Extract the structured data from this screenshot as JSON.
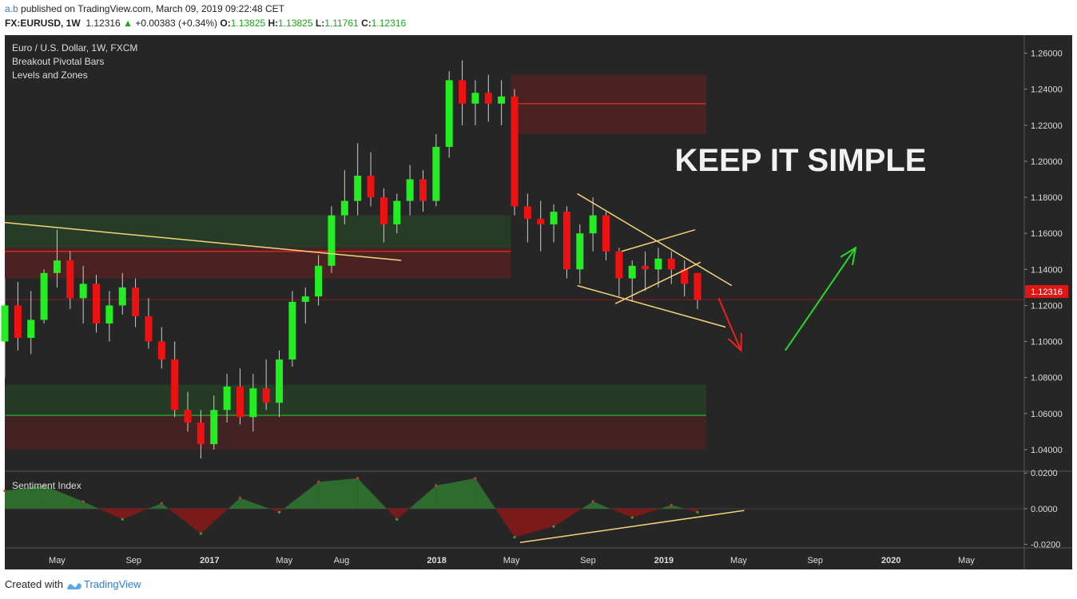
{
  "header": {
    "user": "a.b",
    "published": "published on TradingView.com, March 09, 2019 09:22:48 CET",
    "symbol_line": "FX:EURUSD, 1W",
    "last": "1.12316",
    "change_arrow": "▲",
    "change": "+0.00383 (+0.34%)",
    "o_label": "O:",
    "o": "1.13825",
    "h_label": "H:",
    "h": "1.13825",
    "l_label": "L:",
    "l": "1.11761",
    "c_label": "C:",
    "c": "1.12316"
  },
  "legend": {
    "line1": "Euro / U.S. Dollar, 1W, FXCM",
    "line2": "Breakout Pivotal Bars",
    "line3": "Levels and Zones"
  },
  "annotation": "KEEP IT SIMPLE",
  "indicator_label": "Sentiment Index",
  "price_tag": "1.12316",
  "footer": {
    "created": "Created with",
    "brand": "TradingView"
  },
  "colors": {
    "background": "#262626",
    "bull": "#22ee22",
    "bear": "#ee1111",
    "trendline": "#f4d47a",
    "arrow_up": "#22dd22",
    "arrow_down": "#ee2020",
    "sentiment_pos": "#2e6b2e",
    "sentiment_neg": "#7a1a1a"
  },
  "chart_data": {
    "type": "candlestick",
    "title": "Euro / U.S. Dollar, 1W, FXCM",
    "symbol": "FX:EURUSD",
    "timeframe": "1W",
    "y_axis": {
      "ticks": [
        "1.26000",
        "1.24000",
        "1.22000",
        "1.20000",
        "1.18000",
        "1.16000",
        "1.14000",
        "1.12000",
        "1.10000",
        "1.08000",
        "1.06000",
        "1.04000"
      ],
      "range": [
        1.028,
        1.27
      ]
    },
    "x_axis": {
      "ticks": [
        "May",
        "Sep",
        "2017",
        "May",
        "Aug",
        "2018",
        "May",
        "Sep",
        "2019",
        "May",
        "Sep",
        "2020",
        "May"
      ],
      "range": [
        "2016-02-07",
        "2020-08-02"
      ]
    },
    "last_price": 1.12316,
    "candles": [
      [
        "2016-02-07",
        1.1,
        1.135,
        1.08,
        1.12
      ],
      [
        "2016-02-28",
        1.12,
        1.133,
        1.095,
        1.102
      ],
      [
        "2016-03-20",
        1.102,
        1.128,
        1.093,
        1.112
      ],
      [
        "2016-04-10",
        1.112,
        1.14,
        1.11,
        1.138
      ],
      [
        "2016-05-01",
        1.138,
        1.162,
        1.13,
        1.145
      ],
      [
        "2016-05-22",
        1.145,
        1.15,
        1.118,
        1.124
      ],
      [
        "2016-06-12",
        1.124,
        1.142,
        1.11,
        1.132
      ],
      [
        "2016-07-03",
        1.132,
        1.137,
        1.105,
        1.11
      ],
      [
        "2016-07-24",
        1.11,
        1.128,
        1.1,
        1.12
      ],
      [
        "2016-08-14",
        1.12,
        1.138,
        1.115,
        1.13
      ],
      [
        "2016-09-04",
        1.13,
        1.135,
        1.108,
        1.114
      ],
      [
        "2016-09-25",
        1.114,
        1.124,
        1.096,
        1.1
      ],
      [
        "2016-10-16",
        1.1,
        1.108,
        1.085,
        1.09
      ],
      [
        "2016-11-06",
        1.09,
        1.1,
        1.058,
        1.062
      ],
      [
        "2016-11-27",
        1.062,
        1.072,
        1.05,
        1.055
      ],
      [
        "2016-12-18",
        1.055,
        1.062,
        1.035,
        1.043
      ],
      [
        "2017-01-08",
        1.043,
        1.07,
        1.04,
        1.062
      ],
      [
        "2017-01-29",
        1.062,
        1.082,
        1.055,
        1.075
      ],
      [
        "2017-02-19",
        1.075,
        1.085,
        1.054,
        1.058
      ],
      [
        "2017-03-12",
        1.058,
        1.082,
        1.05,
        1.074
      ],
      [
        "2017-04-02",
        1.074,
        1.09,
        1.062,
        1.066
      ],
      [
        "2017-04-23",
        1.066,
        1.095,
        1.058,
        1.09
      ],
      [
        "2017-05-14",
        1.09,
        1.128,
        1.086,
        1.122
      ],
      [
        "2017-06-04",
        1.122,
        1.13,
        1.11,
        1.125
      ],
      [
        "2017-06-25",
        1.125,
        1.148,
        1.12,
        1.142
      ],
      [
        "2017-07-16",
        1.142,
        1.175,
        1.138,
        1.17
      ],
      [
        "2017-08-06",
        1.17,
        1.195,
        1.165,
        1.178
      ],
      [
        "2017-08-27",
        1.178,
        1.21,
        1.17,
        1.192
      ],
      [
        "2017-09-17",
        1.192,
        1.205,
        1.175,
        1.18
      ],
      [
        "2017-10-08",
        1.18,
        1.185,
        1.155,
        1.165
      ],
      [
        "2017-10-29",
        1.165,
        1.182,
        1.16,
        1.178
      ],
      [
        "2017-11-19",
        1.178,
        1.198,
        1.17,
        1.19
      ],
      [
        "2017-12-10",
        1.19,
        1.195,
        1.172,
        1.178
      ],
      [
        "2017-12-31",
        1.178,
        1.215,
        1.175,
        1.208
      ],
      [
        "2018-01-21",
        1.208,
        1.25,
        1.202,
        1.245
      ],
      [
        "2018-02-11",
        1.245,
        1.256,
        1.22,
        1.232
      ],
      [
        "2018-03-04",
        1.232,
        1.245,
        1.22,
        1.238
      ],
      [
        "2018-03-25",
        1.238,
        1.248,
        1.222,
        1.232
      ],
      [
        "2018-04-15",
        1.232,
        1.245,
        1.22,
        1.236
      ],
      [
        "2018-05-06",
        1.236,
        1.24,
        1.17,
        1.175
      ],
      [
        "2018-05-27",
        1.175,
        1.182,
        1.155,
        1.168
      ],
      [
        "2018-06-17",
        1.168,
        1.178,
        1.15,
        1.165
      ],
      [
        "2018-07-08",
        1.165,
        1.176,
        1.155,
        1.172
      ],
      [
        "2018-07-29",
        1.172,
        1.175,
        1.135,
        1.14
      ],
      [
        "2018-08-19",
        1.14,
        1.165,
        1.132,
        1.16
      ],
      [
        "2018-09-09",
        1.16,
        1.18,
        1.15,
        1.17
      ],
      [
        "2018-09-30",
        1.17,
        1.172,
        1.145,
        1.15
      ],
      [
        "2018-10-21",
        1.15,
        1.152,
        1.125,
        1.135
      ],
      [
        "2018-11-11",
        1.135,
        1.145,
        1.122,
        1.142
      ],
      [
        "2018-12-02",
        1.142,
        1.15,
        1.128,
        1.14
      ],
      [
        "2018-12-23",
        1.14,
        1.152,
        1.13,
        1.146
      ],
      [
        "2019-01-13",
        1.146,
        1.15,
        1.132,
        1.14
      ],
      [
        "2019-02-03",
        1.14,
        1.145,
        1.125,
        1.132
      ],
      [
        "2019-02-24",
        1.138,
        1.138,
        1.118,
        1.123
      ]
    ],
    "sentiment_index": {
      "label": "Sentiment Index",
      "ticks": [
        "0.0200",
        "0.0000",
        "-0.0200"
      ],
      "range": [
        -0.022,
        0.021
      ],
      "x": [
        "2016-02-07",
        "2016-04-10",
        "2016-06-12",
        "2016-08-14",
        "2016-10-16",
        "2016-12-18",
        "2017-02-19",
        "2017-04-23",
        "2017-06-25",
        "2017-08-27",
        "2017-10-29",
        "2017-12-31",
        "2018-03-04",
        "2018-05-06",
        "2018-07-08",
        "2018-09-09",
        "2018-11-11",
        "2019-01-13",
        "2019-02-24"
      ],
      "values": [
        0.01,
        0.013,
        0.004,
        -0.006,
        0.003,
        -0.014,
        0.006,
        -0.002,
        0.015,
        0.017,
        -0.006,
        0.013,
        0.017,
        -0.016,
        -0.01,
        0.004,
        -0.005,
        0.002,
        -0.002
      ]
    },
    "drawings": {
      "zones": [
        {
          "from": "2016-02-07",
          "to": "2018-04-30",
          "top": 1.152,
          "bottom": 1.135,
          "line": 1.15,
          "fill": "red"
        },
        {
          "from": "2016-02-07",
          "to": "2018-04-30",
          "top": 1.17,
          "bottom": 1.152,
          "fill": "green"
        },
        {
          "from": "2018-04-30",
          "to": "2019-03-10",
          "top": 1.248,
          "bottom": 1.215,
          "line": 1.232,
          "fill": "red"
        },
        {
          "from": "2016-02-07",
          "to": "2019-03-10",
          "top": 1.076,
          "bottom": 1.04,
          "line": 1.059,
          "fill": "green-red"
        }
      ],
      "trendlines": [
        {
          "from": [
            "2016-02-07",
            1.166
          ],
          "to": [
            "2017-11-05",
            1.145
          ]
        },
        {
          "from": [
            "2018-08-15",
            1.182
          ],
          "to": [
            "2019-04-20",
            1.131
          ]
        },
        {
          "from": [
            "2018-08-15",
            1.131
          ],
          "to": [
            "2019-04-10",
            1.108
          ]
        },
        {
          "from": [
            "2018-10-25",
            1.15
          ],
          "to": [
            "2019-02-20",
            1.162
          ]
        },
        {
          "from": [
            "2018-10-15",
            1.121
          ],
          "to": [
            "2019-03-01",
            1.144
          ]
        }
      ],
      "indicator_trendline": {
        "from": [
          "2018-05-15",
          -0.019
        ],
        "to": [
          "2019-05-10",
          -0.001
        ]
      },
      "arrows": [
        {
          "direction": "down",
          "from": [
            "2019-03-30",
            1.124
          ],
          "to": [
            "2019-05-05",
            1.095
          ]
        },
        {
          "direction": "up",
          "from": [
            "2019-07-15",
            1.095
          ],
          "to": [
            "2019-11-05",
            1.152
          ]
        }
      ]
    }
  }
}
